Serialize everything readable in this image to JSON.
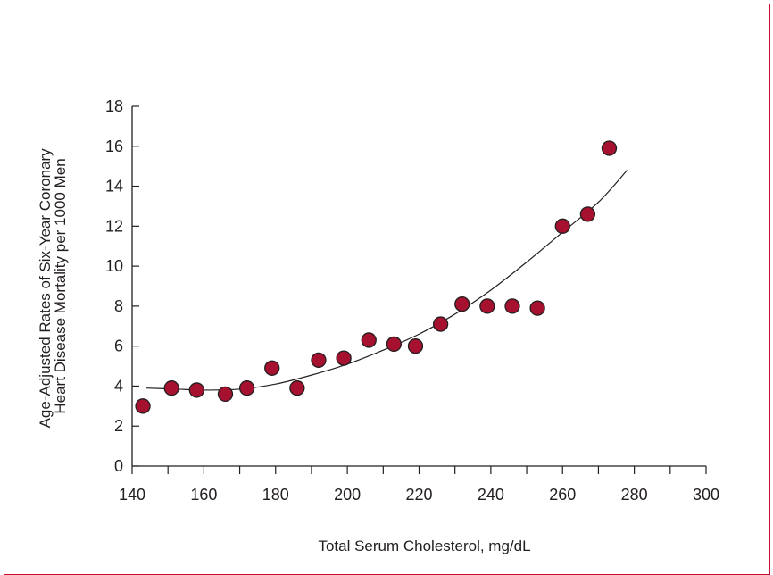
{
  "colors": {
    "frame": "#c8102e",
    "marker": "#a5112f",
    "ink": "#231f20"
  },
  "chart_data": {
    "type": "scatter",
    "title": "",
    "xlabel": "Total Serum Cholesterol, mg/dL",
    "ylabel_lines": [
      "Age-Adjusted Rates of Six-Year Coronary",
      "Heart Disease Mortality per 1000 Men"
    ],
    "xlim": [
      140,
      300
    ],
    "ylim": [
      0,
      18
    ],
    "x_ticks": [
      140,
      160,
      180,
      200,
      220,
      240,
      260,
      280,
      300
    ],
    "y_ticks": [
      0,
      2,
      4,
      6,
      8,
      10,
      12,
      14,
      16,
      18
    ],
    "grid": false,
    "points": [
      {
        "x": 143,
        "y": 3.0
      },
      {
        "x": 151,
        "y": 3.9
      },
      {
        "x": 158,
        "y": 3.8
      },
      {
        "x": 166,
        "y": 3.6
      },
      {
        "x": 172,
        "y": 3.9
      },
      {
        "x": 179,
        "y": 4.9
      },
      {
        "x": 186,
        "y": 3.9
      },
      {
        "x": 192,
        "y": 5.3
      },
      {
        "x": 199,
        "y": 5.4
      },
      {
        "x": 206,
        "y": 6.3
      },
      {
        "x": 213,
        "y": 6.1
      },
      {
        "x": 219,
        "y": 6.0
      },
      {
        "x": 226,
        "y": 7.1
      },
      {
        "x": 232,
        "y": 8.1
      },
      {
        "x": 239,
        "y": 8.0
      },
      {
        "x": 246,
        "y": 8.0
      },
      {
        "x": 253,
        "y": 7.9
      },
      {
        "x": 260,
        "y": 12.0
      },
      {
        "x": 267,
        "y": 12.6
      },
      {
        "x": 273,
        "y": 15.9
      }
    ],
    "trend_curve": [
      {
        "x": 144,
        "y": 3.9
      },
      {
        "x": 152,
        "y": 3.85
      },
      {
        "x": 160,
        "y": 3.8
      },
      {
        "x": 170,
        "y": 3.85
      },
      {
        "x": 180,
        "y": 4.1
      },
      {
        "x": 190,
        "y": 4.55
      },
      {
        "x": 200,
        "y": 5.1
      },
      {
        "x": 210,
        "y": 5.8
      },
      {
        "x": 220,
        "y": 6.6
      },
      {
        "x": 230,
        "y": 7.6
      },
      {
        "x": 240,
        "y": 8.8
      },
      {
        "x": 250,
        "y": 10.2
      },
      {
        "x": 260,
        "y": 11.7
      },
      {
        "x": 270,
        "y": 13.2
      },
      {
        "x": 278,
        "y": 14.8
      }
    ]
  }
}
